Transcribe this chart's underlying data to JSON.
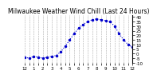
{
  "title": "Milwaukee Weather Wind Chill (Last 24 Hours)",
  "x_values": [
    0,
    1,
    2,
    3,
    4,
    5,
    6,
    7,
    8,
    9,
    10,
    11,
    12,
    13,
    14,
    15,
    16,
    17,
    18,
    19,
    20,
    21,
    22,
    23,
    24
  ],
  "y_values": [
    -4,
    -5,
    -3,
    -4,
    -5,
    -4,
    -3,
    -2,
    2,
    8,
    15,
    22,
    28,
    32,
    35,
    37,
    38,
    37,
    36,
    35,
    30,
    22,
    15,
    10,
    7
  ],
  "y_ticks": [
    40,
    35,
    30,
    25,
    20,
    15,
    10,
    5,
    0,
    -5,
    -10
  ],
  "y_lim": [
    -10,
    42
  ],
  "x_lim": [
    0,
    24
  ],
  "line_color": "#0000cc",
  "marker": ".",
  "marker_size": 3,
  "bg_color": "#ffffff",
  "grid_color": "#aaaaaa",
  "title_color": "#000000",
  "title_fontsize": 5.5,
  "tick_fontsize": 4,
  "x_tick_labels": [
    "12",
    "",
    "1",
    "",
    "2",
    "",
    "3",
    "",
    "4",
    "",
    "5",
    "",
    "6",
    "",
    "7",
    "",
    "8",
    "",
    "9",
    "",
    "10",
    "",
    "11",
    "",
    "12"
  ],
  "x_ticks": [
    0,
    1,
    2,
    3,
    4,
    5,
    6,
    7,
    8,
    9,
    10,
    11,
    12,
    13,
    14,
    15,
    16,
    17,
    18,
    19,
    20,
    21,
    22,
    23,
    24
  ]
}
